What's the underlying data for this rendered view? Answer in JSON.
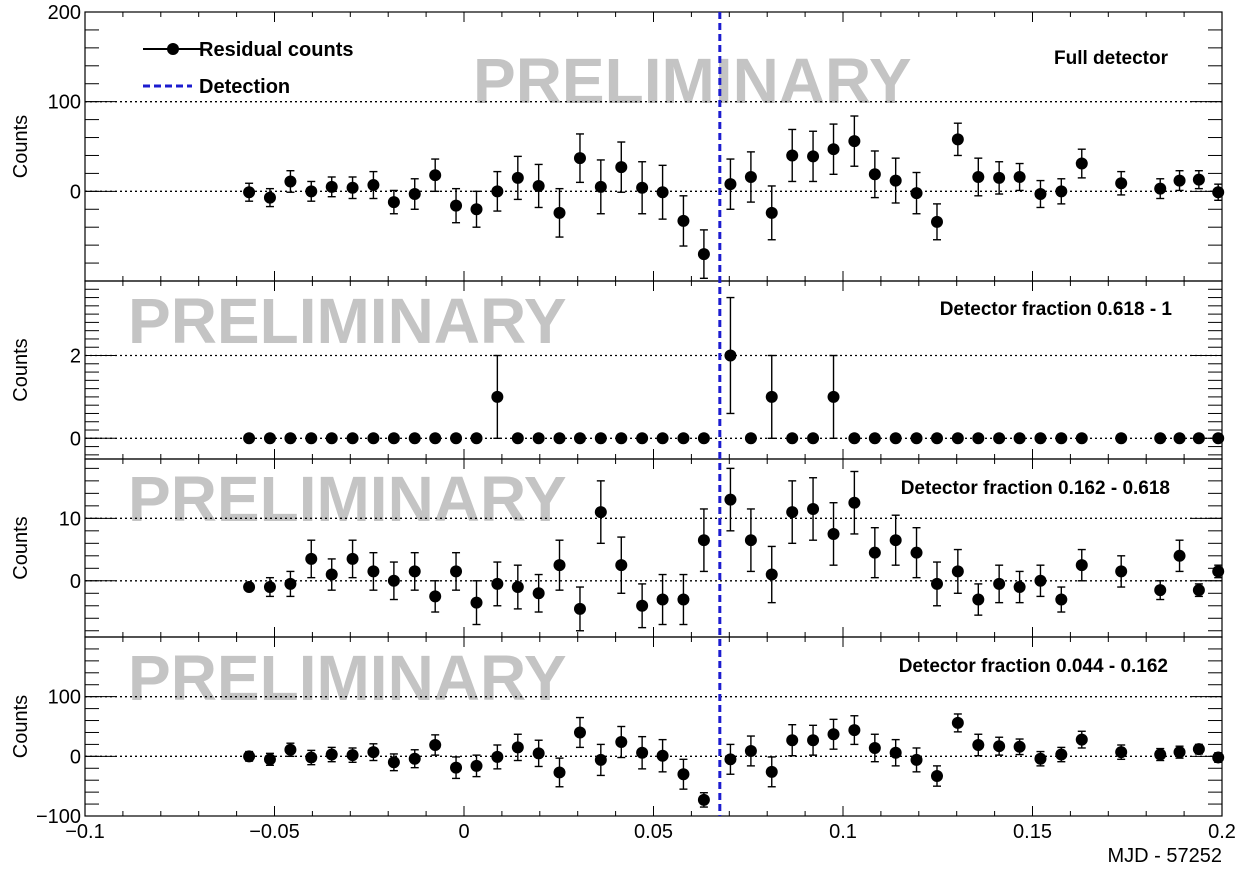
{
  "chart_data": {
    "type": "scatter",
    "xlabel": "MJD - 57252",
    "xlim": [
      -0.1,
      0.2
    ],
    "x_ticks": [
      "−0.1",
      "−0.05",
      "0",
      "0.05",
      "0.1",
      "0.15",
      "0.2"
    ],
    "detection_x": 0.0675,
    "watermark": "PRELIMINARY",
    "legend": {
      "points": "Residual counts",
      "line": "Detection"
    },
    "colors": {
      "detection": "#1c1ccf",
      "points": "#000000",
      "watermark": "#c4c4c4"
    },
    "panels": [
      {
        "label": "Full detector",
        "ylabel": "Counts",
        "ylim": [
          -100,
          200
        ],
        "y_ticks": [
          {
            "v": 0,
            "t": "0"
          },
          {
            "v": 100,
            "t": "100"
          },
          {
            "v": 200,
            "t": "200"
          }
        ],
        "ref_lines": [
          0,
          100
        ],
        "points": [
          [
            -0.0567,
            -1,
            10
          ],
          [
            -0.0512,
            -7,
            10
          ],
          [
            -0.0458,
            11,
            12
          ],
          [
            -0.0403,
            0,
            11
          ],
          [
            -0.0349,
            5,
            11
          ],
          [
            -0.0294,
            4,
            12
          ],
          [
            -0.0239,
            7,
            15
          ],
          [
            -0.0185,
            -12,
            13
          ],
          [
            -0.013,
            -3,
            17
          ],
          [
            -0.0076,
            18,
            18
          ],
          [
            -0.0021,
            -16,
            19
          ],
          [
            0.0033,
            -20,
            20
          ],
          [
            0.0088,
            0,
            22
          ],
          [
            0.0142,
            15,
            24
          ],
          [
            0.0197,
            6,
            24
          ],
          [
            0.0252,
            -24,
            27
          ],
          [
            0.0306,
            37,
            27
          ],
          [
            0.0361,
            5,
            30
          ],
          [
            0.0415,
            27,
            28
          ],
          [
            0.047,
            4,
            29
          ],
          [
            0.0524,
            -1,
            30
          ],
          [
            0.0579,
            -33,
            28
          ],
          [
            0.0633,
            -70,
            27
          ],
          [
            0.0703,
            8,
            28
          ],
          [
            0.0757,
            16,
            28
          ],
          [
            0.0812,
            -24,
            30
          ],
          [
            0.0866,
            40,
            29
          ],
          [
            0.0921,
            39,
            28
          ],
          [
            0.0975,
            47,
            28
          ],
          [
            0.103,
            56,
            28
          ],
          [
            0.1084,
            19,
            26
          ],
          [
            0.1139,
            12,
            25
          ],
          [
            0.1194,
            -2,
            23
          ],
          [
            0.1248,
            -34,
            20
          ],
          [
            0.1303,
            58,
            18
          ],
          [
            0.1357,
            16,
            21
          ],
          [
            0.1412,
            15,
            18
          ],
          [
            0.1466,
            16,
            15
          ],
          [
            0.1521,
            -3,
            15
          ],
          [
            0.1576,
            0,
            14
          ],
          [
            0.163,
            31,
            16
          ],
          [
            0.1734,
            9,
            13
          ],
          [
            0.1837,
            3,
            11
          ],
          [
            0.1888,
            12,
            11
          ],
          [
            0.1939,
            13,
            10
          ],
          [
            0.199,
            -1,
            9
          ]
        ]
      },
      {
        "label": "Detector fraction 0.618 - 1",
        "ylabel": "Counts",
        "ylim": [
          -0.5,
          3.8
        ],
        "y_ticks": [
          {
            "v": 0,
            "t": "0"
          },
          {
            "v": 2,
            "t": "2"
          }
        ],
        "ref_lines": [
          0,
          2
        ],
        "points": [
          [
            -0.0567,
            0,
            0
          ],
          [
            -0.0512,
            0,
            0
          ],
          [
            -0.0458,
            0,
            0
          ],
          [
            -0.0403,
            0,
            0
          ],
          [
            -0.0349,
            0,
            0
          ],
          [
            -0.0294,
            0,
            0
          ],
          [
            -0.0239,
            0,
            0
          ],
          [
            -0.0185,
            0,
            0
          ],
          [
            -0.013,
            0,
            0
          ],
          [
            -0.0076,
            0,
            0
          ],
          [
            -0.0021,
            0,
            0
          ],
          [
            0.0033,
            0,
            0
          ],
          [
            0.0088,
            1,
            1
          ],
          [
            0.0142,
            0,
            0
          ],
          [
            0.0197,
            0,
            0
          ],
          [
            0.0252,
            0,
            0
          ],
          [
            0.0306,
            0,
            0
          ],
          [
            0.0361,
            0,
            0
          ],
          [
            0.0415,
            0,
            0
          ],
          [
            0.047,
            0,
            0
          ],
          [
            0.0524,
            0,
            0
          ],
          [
            0.0579,
            0,
            0
          ],
          [
            0.0633,
            0,
            0
          ],
          [
            0.0703,
            2,
            1.4
          ],
          [
            0.0757,
            0,
            0
          ],
          [
            0.0812,
            1,
            1
          ],
          [
            0.0866,
            0,
            0
          ],
          [
            0.0921,
            0,
            0
          ],
          [
            0.0975,
            1,
            1
          ],
          [
            0.103,
            0,
            0
          ],
          [
            0.1084,
            0,
            0
          ],
          [
            0.1139,
            0,
            0
          ],
          [
            0.1194,
            0,
            0
          ],
          [
            0.1248,
            0,
            0
          ],
          [
            0.1303,
            0,
            0
          ],
          [
            0.1357,
            0,
            0
          ],
          [
            0.1412,
            0,
            0
          ],
          [
            0.1466,
            0,
            0
          ],
          [
            0.1521,
            0,
            0
          ],
          [
            0.1576,
            0,
            0
          ],
          [
            0.163,
            0,
            0
          ],
          [
            0.1734,
            0,
            0
          ],
          [
            0.1837,
            0,
            0
          ],
          [
            0.1888,
            0,
            0
          ],
          [
            0.1939,
            0,
            0
          ],
          [
            0.199,
            0,
            0
          ]
        ]
      },
      {
        "label": "Detector fraction 0.162 - 0.618",
        "ylabel": "Counts",
        "ylim": [
          -9,
          19.5
        ],
        "y_ticks": [
          {
            "v": 0,
            "t": "0"
          },
          {
            "v": 10,
            "t": "10"
          }
        ],
        "ref_lines": [
          0,
          10
        ],
        "points": [
          [
            -0.0567,
            -1,
            0.5
          ],
          [
            -0.0512,
            -1,
            1.5
          ],
          [
            -0.0458,
            -0.5,
            2
          ],
          [
            -0.0403,
            3.5,
            3
          ],
          [
            -0.0349,
            1,
            2.5
          ],
          [
            -0.0294,
            3.5,
            3
          ],
          [
            -0.0239,
            1.5,
            3
          ],
          [
            -0.0185,
            0,
            3
          ],
          [
            -0.013,
            1.5,
            3
          ],
          [
            -0.0076,
            -2.5,
            2.5
          ],
          [
            -0.0021,
            1.5,
            3
          ],
          [
            0.0033,
            -3.5,
            3.5
          ],
          [
            0.0088,
            -0.5,
            3.5
          ],
          [
            0.0142,
            -1,
            3.5
          ],
          [
            0.0197,
            -2,
            3
          ],
          [
            0.0252,
            2.5,
            4
          ],
          [
            0.0306,
            -4.5,
            3.5
          ],
          [
            0.0361,
            11,
            5
          ],
          [
            0.0415,
            2.5,
            4.5
          ],
          [
            0.047,
            -4,
            3.5
          ],
          [
            0.0524,
            -3,
            4
          ],
          [
            0.0579,
            -3,
            4
          ],
          [
            0.0633,
            6.5,
            5
          ],
          [
            0.0703,
            13,
            5
          ],
          [
            0.0757,
            6.5,
            5
          ],
          [
            0.0812,
            1,
            4.5
          ],
          [
            0.0866,
            11,
            5
          ],
          [
            0.0921,
            11.5,
            5
          ],
          [
            0.0975,
            7.5,
            5
          ],
          [
            0.103,
            12.5,
            5
          ],
          [
            0.1084,
            4.5,
            4
          ],
          [
            0.1139,
            6.5,
            4
          ],
          [
            0.1194,
            4.5,
            4
          ],
          [
            0.1248,
            -0.5,
            3.5
          ],
          [
            0.1303,
            1.5,
            3.5
          ],
          [
            0.1357,
            -3,
            2.5
          ],
          [
            0.1412,
            -0.5,
            3
          ],
          [
            0.1466,
            -1,
            2.5
          ],
          [
            0.1521,
            0,
            2.5
          ],
          [
            0.1576,
            -3,
            2
          ],
          [
            0.163,
            2.5,
            2.5
          ],
          [
            0.1734,
            1.5,
            2.5
          ],
          [
            0.1837,
            -1.5,
            1.5
          ],
          [
            0.1888,
            4,
            2.5
          ],
          [
            0.1939,
            -1.5,
            1
          ],
          [
            0.199,
            1.5,
            1
          ]
        ]
      },
      {
        "label": "Detector fraction 0.044 - 0.162",
        "ylabel": "Counts",
        "ylim": [
          -100,
          200
        ],
        "y_ticks": [
          {
            "v": -100,
            "t": "−100"
          },
          {
            "v": 0,
            "t": "0"
          },
          {
            "v": 100,
            "t": "100"
          }
        ],
        "ref_lines": [
          0,
          100
        ],
        "points": [
          [
            -0.0567,
            0,
            8
          ],
          [
            -0.0512,
            -5,
            10
          ],
          [
            -0.0458,
            11,
            11
          ],
          [
            -0.0403,
            -2,
            12
          ],
          [
            -0.0349,
            3,
            12
          ],
          [
            -0.0294,
            2,
            12
          ],
          [
            -0.0239,
            7,
            14
          ],
          [
            -0.0185,
            -10,
            14
          ],
          [
            -0.013,
            -4,
            15
          ],
          [
            -0.0076,
            19,
            17
          ],
          [
            -0.0021,
            -19,
            18
          ],
          [
            0.0033,
            -16,
            18
          ],
          [
            0.0088,
            -1,
            20
          ],
          [
            0.0142,
            15,
            22
          ],
          [
            0.0197,
            5,
            22
          ],
          [
            0.0252,
            -27,
            24
          ],
          [
            0.0306,
            40,
            25
          ],
          [
            0.0361,
            -6,
            26
          ],
          [
            0.0415,
            24,
            26
          ],
          [
            0.047,
            6,
            27
          ],
          [
            0.0524,
            1,
            27
          ],
          [
            0.0579,
            -30,
            25
          ],
          [
            0.0633,
            -73,
            12
          ],
          [
            0.0703,
            -5,
            25
          ],
          [
            0.0757,
            9,
            25
          ],
          [
            0.0812,
            -26,
            25
          ],
          [
            0.0866,
            27,
            26
          ],
          [
            0.0921,
            27,
            25
          ],
          [
            0.0975,
            37,
            25
          ],
          [
            0.103,
            44,
            24
          ],
          [
            0.1084,
            14,
            23
          ],
          [
            0.1139,
            6,
            22
          ],
          [
            0.1194,
            -6,
            20
          ],
          [
            0.1248,
            -33,
            17
          ],
          [
            0.1303,
            56,
            15
          ],
          [
            0.1357,
            19,
            18
          ],
          [
            0.1412,
            17,
            15
          ],
          [
            0.1466,
            16,
            13
          ],
          [
            0.1521,
            -4,
            12
          ],
          [
            0.1576,
            3,
            12
          ],
          [
            0.163,
            28,
            14
          ],
          [
            0.1734,
            7,
            12
          ],
          [
            0.1837,
            3,
            10
          ],
          [
            0.1888,
            7,
            10
          ],
          [
            0.1939,
            12,
            8
          ],
          [
            0.199,
            -2,
            8
          ]
        ]
      }
    ]
  }
}
